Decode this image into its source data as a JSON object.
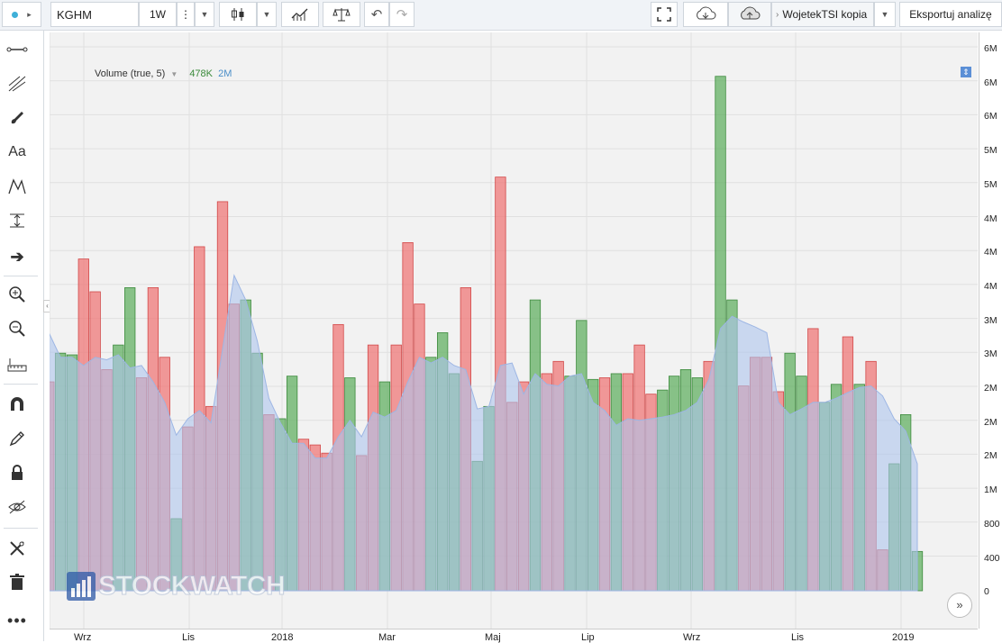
{
  "toolbar": {
    "symbol": "KGHM",
    "interval": "1W",
    "layout_name": "WojetekTSI kopia",
    "export_label": "Eksportuj analizę"
  },
  "legend": {
    "title": "Volume (true, 5)",
    "value1": "478K",
    "value2": "2M"
  },
  "axis": {
    "y_ticks": [
      "6M",
      "6M",
      "6M",
      "5M",
      "5M",
      "4M",
      "4M",
      "4M",
      "3M",
      "3M",
      "2M",
      "2M",
      "2M",
      "1M",
      "800",
      "400",
      "0"
    ],
    "x_ticks": [
      "Wrz",
      "Lis",
      "2018",
      "Mar",
      "Maj",
      "Lip",
      "Wrz",
      "Lis",
      "2019"
    ]
  },
  "watermark": "STOCKWATCH",
  "colors": {
    "up": "#5aac5a",
    "down": "#f07070",
    "ma_fill": "#adc4ec",
    "background": "#f2f2f2"
  },
  "chart_data": {
    "type": "bar",
    "title": "",
    "series": [
      {
        "values": [
          2.55,
          2.9,
          2.88,
          4.05,
          3.65,
          2.7,
          3.0,
          3.7,
          2.6,
          3.7,
          2.85,
          0.88,
          2.0,
          4.2,
          2.25,
          4.75,
          3.5,
          3.55,
          2.9,
          2.15,
          2.1,
          2.62,
          1.85,
          1.78,
          1.68,
          3.25,
          2.6,
          1.65,
          3.0,
          2.55,
          3.0,
          4.25,
          3.5,
          2.85,
          3.15,
          2.65,
          3.7,
          1.58,
          2.25,
          5.05,
          2.3,
          2.55,
          3.55,
          2.65,
          2.8,
          2.62,
          3.3,
          2.58,
          2.6,
          2.65,
          2.65,
          3.0,
          2.4,
          2.45,
          2.62,
          2.7,
          2.6,
          2.8,
          6.28,
          3.55,
          2.5,
          2.85,
          2.85,
          2.43,
          2.9,
          2.62,
          3.2,
          2.3,
          2.52,
          3.1,
          2.52,
          2.8,
          0.5,
          1.55,
          2.15,
          0.48
        ],
        "colors": [
          "d",
          "u",
          "u",
          "d",
          "d",
          "d",
          "u",
          "u",
          "d",
          "d",
          "d",
          "u",
          "d",
          "d",
          "d",
          "d",
          "d",
          "u",
          "u",
          "d",
          "u",
          "u",
          "d",
          "d",
          "d",
          "d",
          "u",
          "d",
          "d",
          "u",
          "d",
          "d",
          "d",
          "u",
          "u",
          "u",
          "d",
          "u",
          "u",
          "d",
          "d",
          "d",
          "u",
          "d",
          "d",
          "u",
          "u",
          "u",
          "d",
          "u",
          "d",
          "d",
          "d",
          "u",
          "u",
          "u",
          "u",
          "d",
          "u",
          "u",
          "d",
          "d",
          "d",
          "d",
          "u",
          "u",
          "d",
          "u",
          "u",
          "d",
          "u",
          "d",
          "d",
          "u",
          "u",
          "u"
        ]
      },
      {
        "name": "Volume (true, 5)",
        "values": [
          3.15,
          2.85,
          2.85,
          2.75,
          2.85,
          2.82,
          2.88,
          2.72,
          2.75,
          2.55,
          2.3,
          1.9,
          2.1,
          2.2,
          2.05,
          2.95,
          3.85,
          3.55,
          3.05,
          2.35,
          2.05,
          1.8,
          1.8,
          1.62,
          1.62,
          1.88,
          2.08,
          1.88,
          2.18,
          2.12,
          2.2,
          2.55,
          2.85,
          2.78,
          2.85,
          2.75,
          2.7,
          2.22,
          2.25,
          2.75,
          2.78,
          2.4,
          2.65,
          2.52,
          2.5,
          2.62,
          2.65,
          2.3,
          2.2,
          2.02,
          2.1,
          2.08,
          2.1,
          2.12,
          2.15,
          2.2,
          2.3,
          2.58,
          3.2,
          3.35,
          3.28,
          3.22,
          3.15,
          2.3,
          2.15,
          2.22,
          2.3,
          2.3,
          2.35,
          2.42,
          2.48,
          2.5,
          2.38,
          2.1,
          1.95,
          1.55
        ]
      }
    ],
    "ylim": [
      0,
      6.75
    ],
    "x_ticks": [
      "Wrz",
      "Lis",
      "2018",
      "Mar",
      "Maj",
      "Lip",
      "Wrz",
      "Lis",
      "2019"
    ],
    "grid": true,
    "legend": "top-left"
  }
}
